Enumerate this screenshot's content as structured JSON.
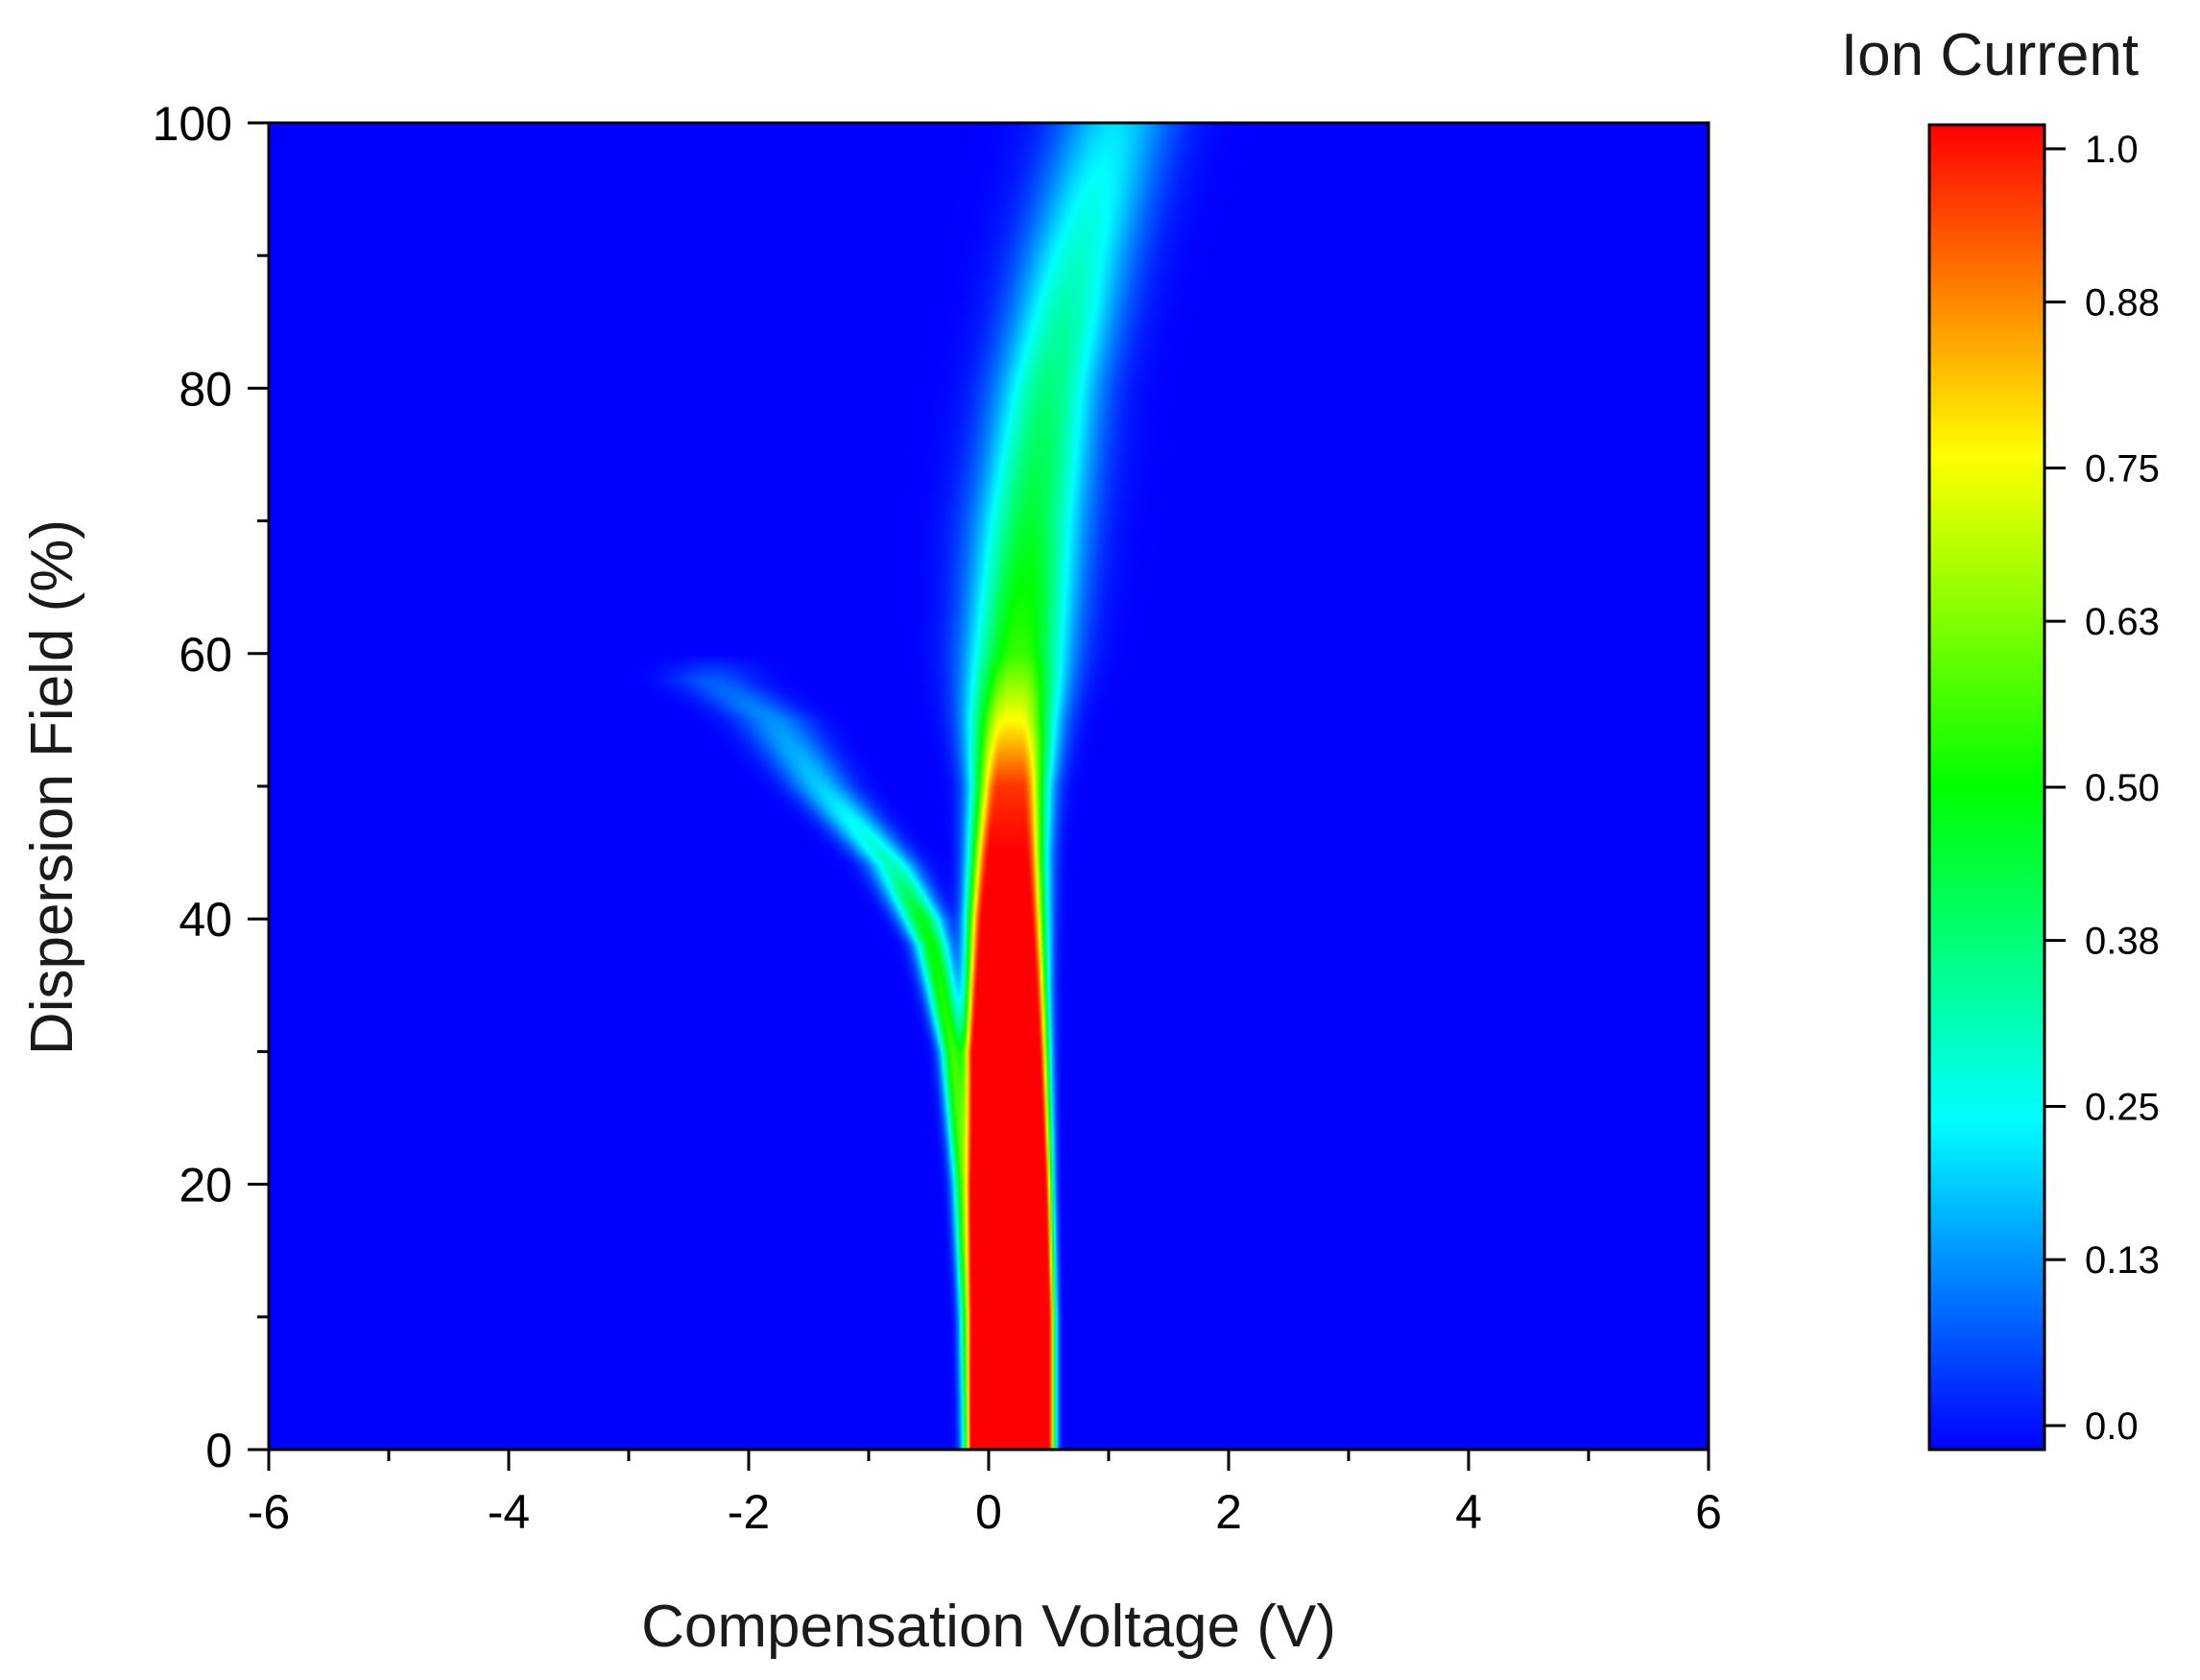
{
  "chart_data": {
    "type": "heatmap",
    "title": "",
    "xlabel": "Compensation Voltage (V)",
    "ylabel": "Dispersion Field (%)",
    "xlim": [
      -6,
      6
    ],
    "ylim": [
      0,
      100
    ],
    "x_ticks": [
      "-6",
      "-4",
      "-2",
      "0",
      "2",
      "4",
      "6"
    ],
    "y_ticks": [
      "0",
      "20",
      "40",
      "60",
      "80",
      "100"
    ],
    "colorbar": {
      "label": "Ion Current",
      "range": [
        0.0,
        1.0
      ],
      "ticks": [
        "0.0",
        "0.13",
        "0.25",
        "0.38",
        "0.50",
        "0.63",
        "0.75",
        "0.88",
        "1.0"
      ],
      "colors": [
        "#0000ff",
        "#00ffff",
        "#00ff00",
        "#ffff00",
        "#ff0000"
      ]
    },
    "background_value": 0.0,
    "series": [
      {
        "name": "",
        "description": "",
        "field": [
          0,
          10,
          20,
          30,
          35,
          40,
          45,
          50,
          55,
          60,
          70,
          80,
          90,
          100
        ],
        "cv": [
          0.2,
          0.2,
          0.18,
          0.15,
          0.15,
          0.15,
          0.16,
          0.18,
          0.2,
          0.25,
          0.35,
          0.5,
          0.75,
          1.05
        ],
        "peak_intensity": [
          1.0,
          1.0,
          1.0,
          1.0,
          1.0,
          1.0,
          1.0,
          0.95,
          0.75,
          0.55,
          0.45,
          0.38,
          0.3,
          0.22
        ],
        "core_halfwidth": [
          0.3,
          0.3,
          0.29,
          0.27,
          0.24,
          0.2,
          0.15,
          0.1,
          0.06,
          0.03,
          0,
          0,
          0,
          0
        ],
        "sigma": [
          0.04,
          0.04,
          0.045,
          0.06,
          0.07,
          0.09,
          0.11,
          0.14,
          0.2,
          0.26,
          0.3,
          0.3,
          0.32,
          0.34
        ]
      },
      {
        "name": "",
        "description": "",
        "field": [
          0,
          10,
          20,
          30,
          35,
          38,
          40,
          44,
          50,
          55,
          58
        ],
        "cv": [
          -0.15,
          -0.17,
          -0.21,
          -0.3,
          -0.4,
          -0.47,
          -0.56,
          -0.8,
          -1.4,
          -1.8,
          -2.3
        ],
        "peak_intensity": [
          0.55,
          0.55,
          0.55,
          0.55,
          0.52,
          0.5,
          0.48,
          0.32,
          0.2,
          0.14,
          0.09
        ],
        "sigma": [
          0.05,
          0.05,
          0.06,
          0.07,
          0.09,
          0.1,
          0.12,
          0.14,
          0.18,
          0.22,
          0.25
        ]
      }
    ]
  }
}
